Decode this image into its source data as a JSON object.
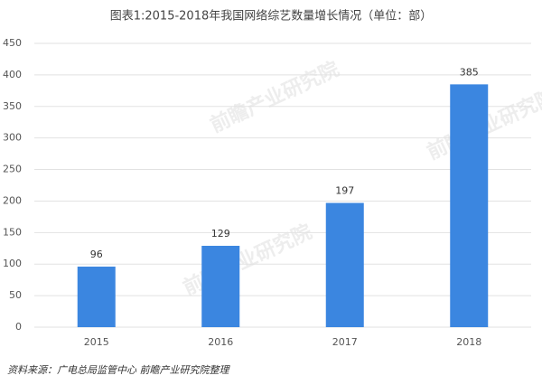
{
  "chart_data": {
    "type": "bar",
    "title": "图表1:2015-2018年我国网络综艺数量增长情况（单位：部）",
    "categories": [
      "2015",
      "2016",
      "2017",
      "2018"
    ],
    "values": [
      96,
      129,
      197,
      385
    ],
    "color": "#3b86e0",
    "ylim": [
      0,
      450
    ],
    "yticks": [
      0,
      50,
      100,
      150,
      200,
      250,
      300,
      350,
      400,
      450
    ],
    "grid": true,
    "source": "资料来源：广电总局监管中心 前瞻产业研究院整理",
    "watermark": "前瞻产业研究院"
  }
}
